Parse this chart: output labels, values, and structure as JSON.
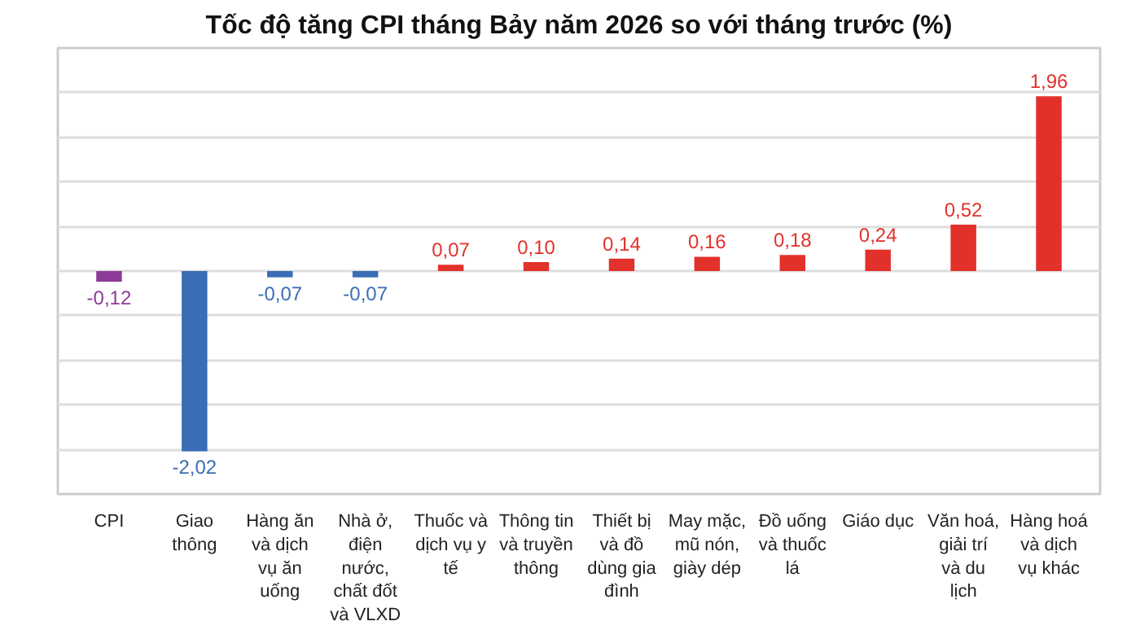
{
  "chart_data": {
    "type": "bar",
    "title": "Tốc độ tăng CPI tháng Bảy năm 2026 so với tháng trước (%)",
    "categories": [
      "CPI",
      "Giao thông",
      "Hàng ăn và dịch vụ ăn uống",
      "Nhà ở, điện nước, chất đốt và VLXD",
      "Thuốc và dịch vụ y tế",
      "Thông tin và truyền thông",
      "Thiết bị và đồ dùng gia đình",
      "May mặc, mũ nón, giày dép",
      "Đồ uống và thuốc lá",
      "Giáo dục",
      "Văn hoá, giải trí và du lịch",
      "Hàng hoá và dịch vụ khác"
    ],
    "values": [
      -0.12,
      -2.02,
      -0.07,
      -0.07,
      0.07,
      0.1,
      0.14,
      0.16,
      0.18,
      0.24,
      0.52,
      1.96
    ],
    "colors": [
      "#8e3b97",
      "#3a6db5",
      "#3a6db5",
      "#3a6db5",
      "#e2312a",
      "#e2312a",
      "#e2312a",
      "#e2312a",
      "#e2312a",
      "#e2312a",
      "#e2312a",
      "#e2312a"
    ],
    "value_labels": [
      "-0,12",
      "-2,02",
      "-0,07",
      "-0,07",
      "0,07",
      "0,10",
      "0,14",
      "0,16",
      "0,18",
      "0,24",
      "0,52",
      "1,96"
    ],
    "ylim": [
      -2.5,
      2.5
    ],
    "yticks": [
      {
        "value": -2.0,
        "label": null
      },
      {
        "value": -1.5,
        "label": null
      },
      {
        "value": -1.0,
        "label": null
      },
      {
        "value": -0.5,
        "label": null
      },
      {
        "value": 0,
        "label": null
      },
      {
        "value": 0.5,
        "label": null
      },
      {
        "value": 1.0,
        "label": null
      },
      {
        "value": 1.5,
        "label": null
      },
      {
        "value": 2.0,
        "label": null
      }
    ],
    "grid": "y",
    "tick_labels": "x"
  }
}
